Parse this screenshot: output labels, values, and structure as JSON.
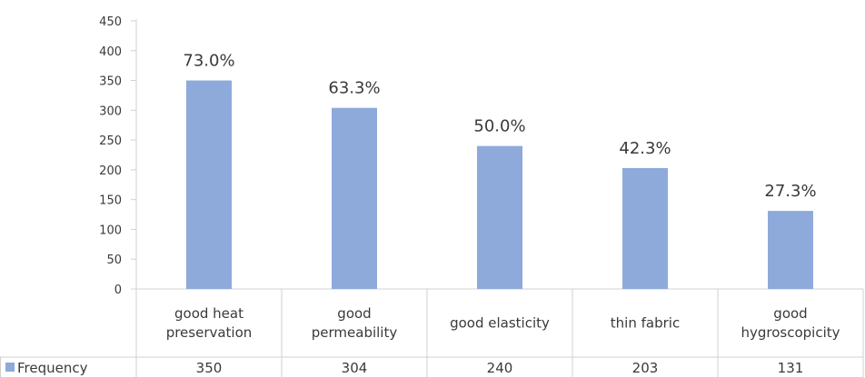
{
  "chart_data": {
    "type": "bar",
    "categories": [
      [
        "good heat",
        "preservation"
      ],
      [
        "good",
        "permeability"
      ],
      [
        "good elasticity"
      ],
      [
        "thin fabric"
      ],
      [
        "good",
        "hygroscopicity"
      ]
    ],
    "series": [
      {
        "name": "Frequency",
        "values": [
          350,
          304,
          240,
          203,
          131
        ],
        "value_labels": [
          "350",
          "304",
          "240",
          "203",
          "131"
        ],
        "color": "#8eaadb"
      }
    ],
    "data_labels": [
      "73.0%",
      "63.3%",
      "50.0%",
      "42.3%",
      "27.3%"
    ],
    "y_ticks": [
      "0",
      "50",
      "100",
      "150",
      "200",
      "250",
      "300",
      "350",
      "400",
      "450"
    ],
    "ylim": [
      0,
      450
    ],
    "grid": false,
    "legend": "data-table",
    "title": "",
    "xlabel": "",
    "ylabel": ""
  }
}
